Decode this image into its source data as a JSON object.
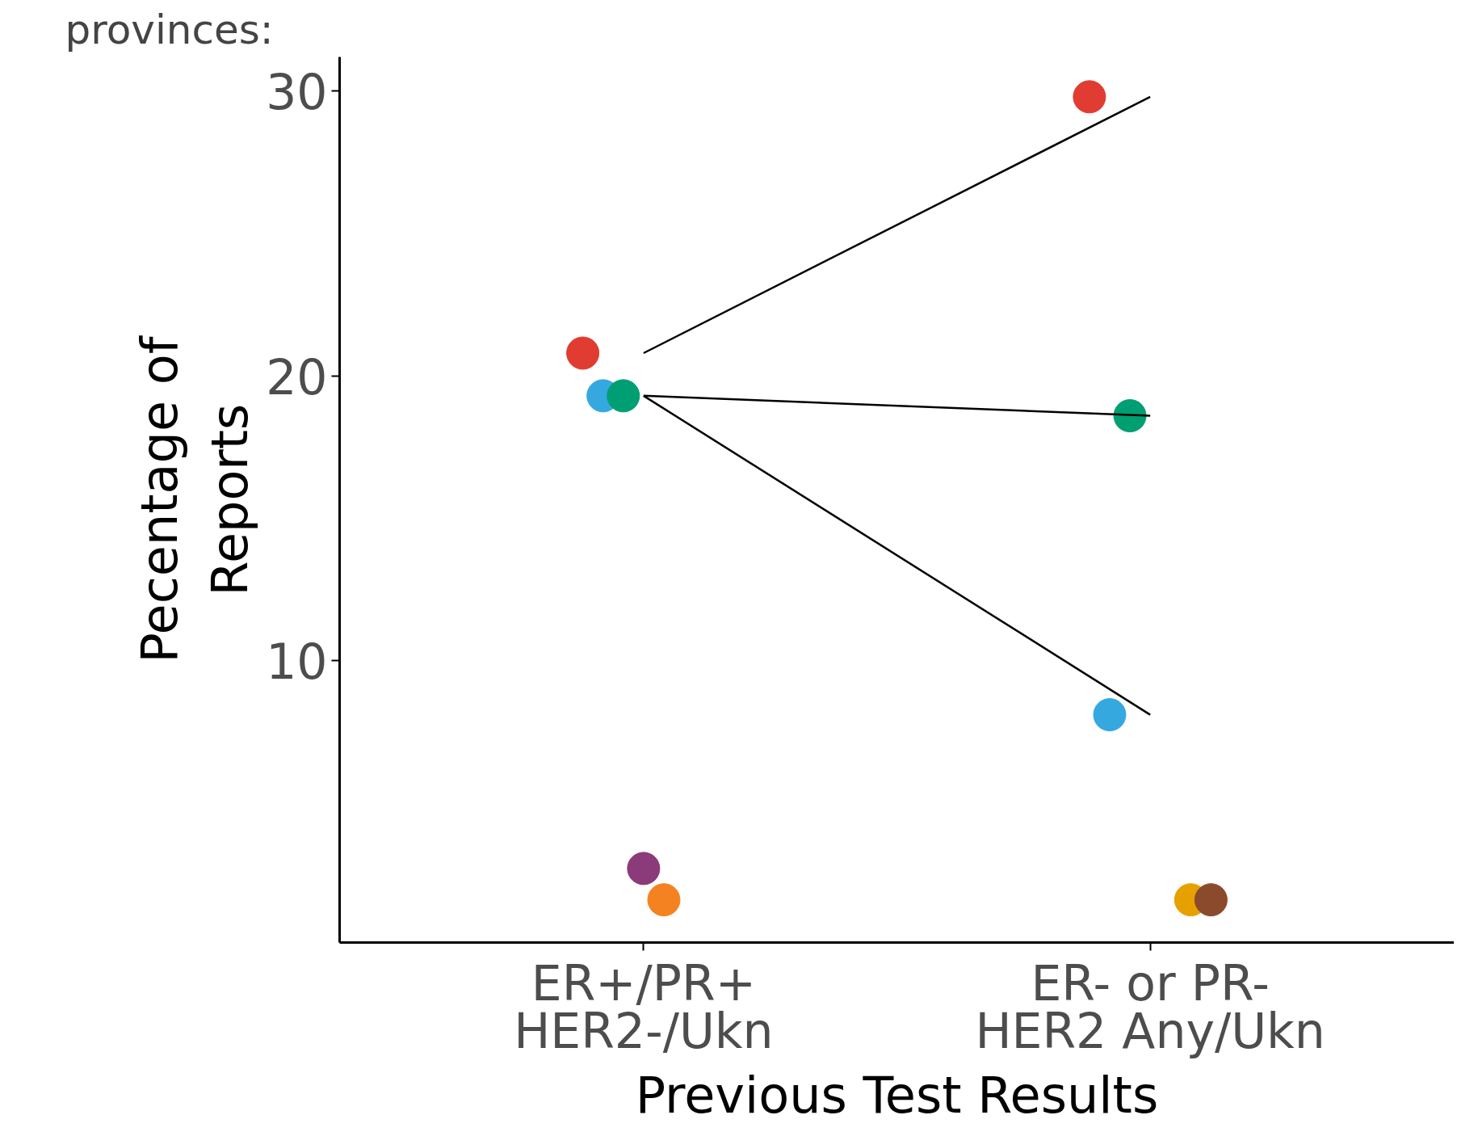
{
  "chart_data": {
    "type": "scatter",
    "xlabel": "Previous Test Results",
    "ylabel": "Pecentage of\nReports",
    "categories": [
      "ER+/PR+\nHER2-/Ukn",
      "ER- or PR-\nHER2 Any/Ukn"
    ],
    "ylim": [
      0.1,
      31.2
    ],
    "yticks": [
      10,
      20,
      30
    ],
    "grid": false,
    "marker": "circle",
    "annotations": [
      "provinces:"
    ],
    "series": [
      {
        "type": "line",
        "color": "#000000",
        "marker": "none",
        "values": [
          20.8,
          29.8
        ]
      },
      {
        "type": "line",
        "color": "#000000",
        "marker": "none",
        "values": [
          19.3,
          18.6
        ]
      },
      {
        "type": "line",
        "color": "#000000",
        "marker": "none",
        "values": [
          19.3,
          8.1
        ]
      },
      {
        "color": "#e03c31",
        "values": [
          20.8,
          29.8
        ]
      },
      {
        "color": "#35a8e0",
        "values": [
          19.3,
          8.1
        ]
      },
      {
        "color": "#009e73",
        "values": [
          19.3,
          18.6
        ]
      },
      {
        "color": "#8b3a7a",
        "values": [
          2.7,
          null
        ]
      },
      {
        "color": "#f58220",
        "values": [
          1.6,
          null
        ]
      },
      {
        "color": "#e6a000",
        "values": [
          null,
          1.6
        ]
      },
      {
        "color": "#8b4a2b",
        "values": [
          null,
          1.6
        ]
      }
    ]
  }
}
